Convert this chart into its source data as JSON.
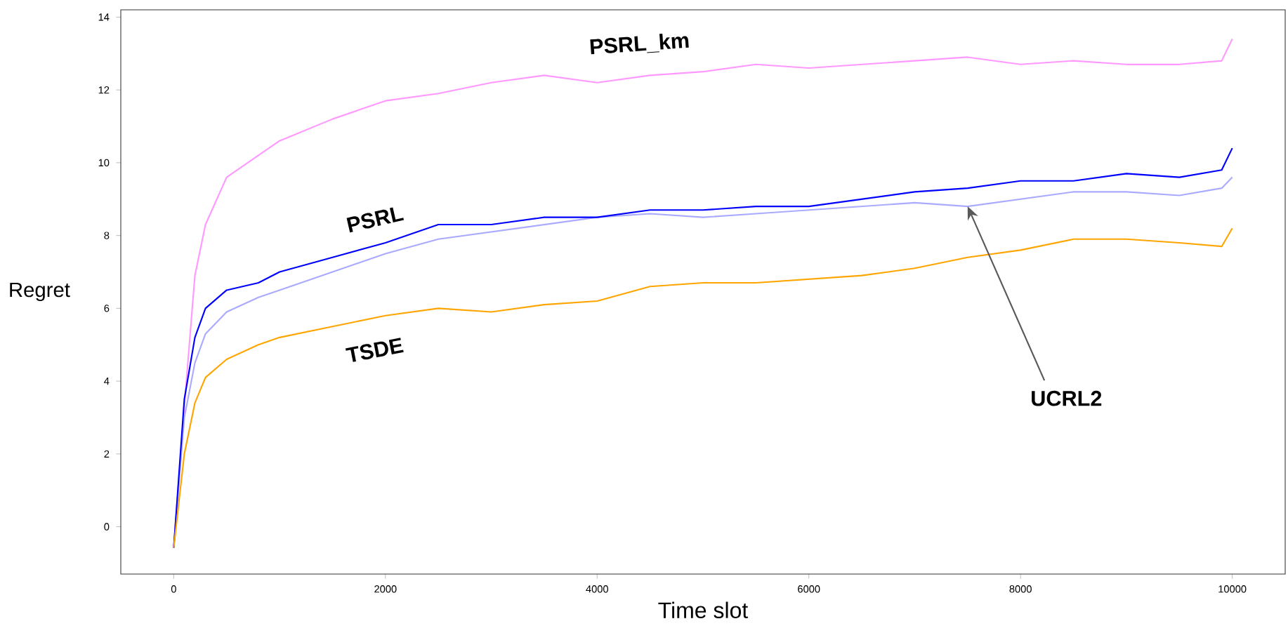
{
  "chart_data": {
    "type": "line",
    "xlabel": "Time slot",
    "ylabel": "Regret",
    "x": [
      0,
      100,
      200,
      300,
      500,
      800,
      1000,
      1500,
      2000,
      2500,
      3000,
      3500,
      4000,
      4500,
      5000,
      5500,
      6000,
      6500,
      7000,
      7500,
      8000,
      8500,
      9000,
      9500,
      9900,
      10000
    ],
    "series": [
      {
        "name": "PSRL_km",
        "color": "#ff99ff",
        "values": [
          -0.58,
          3.3,
          6.9,
          8.3,
          9.6,
          10.2,
          10.6,
          11.2,
          11.7,
          11.9,
          12.2,
          12.4,
          12.2,
          12.4,
          12.5,
          12.7,
          12.6,
          12.7,
          12.8,
          12.9,
          12.7,
          12.8,
          12.7,
          12.7,
          12.8,
          13.4
        ]
      },
      {
        "color": "#aaaaff",
        "values": [
          -0.58,
          3.0,
          4.5,
          5.3,
          5.9,
          6.3,
          6.5,
          7.0,
          7.5,
          7.9,
          8.1,
          8.3,
          8.5,
          8.6,
          8.5,
          8.6,
          8.7,
          8.8,
          8.9,
          8.8,
          9.0,
          9.2,
          9.2,
          9.1,
          9.3,
          9.6
        ]
      },
      {
        "name": "PSRL",
        "color": "#0000ff",
        "values": [
          -0.58,
          3.5,
          5.2,
          6.0,
          6.5,
          6.7,
          7.0,
          7.4,
          7.8,
          8.3,
          8.3,
          8.5,
          8.5,
          8.7,
          8.7,
          8.8,
          8.8,
          9.0,
          9.2,
          9.3,
          9.5,
          9.5,
          9.7,
          9.6,
          9.8,
          10.4
        ]
      },
      {
        "name": "TSDE",
        "color": "#ffa500",
        "values": [
          -0.58,
          2.0,
          3.4,
          4.1,
          4.6,
          5.0,
          5.2,
          5.5,
          5.8,
          6.0,
          5.9,
          6.1,
          6.2,
          6.6,
          6.7,
          6.7,
          6.8,
          6.9,
          7.1,
          7.4,
          7.6,
          7.9,
          7.9,
          7.8,
          7.7,
          8.2
        ]
      }
    ],
    "xlim": [
      -500,
      10500
    ],
    "ylim": [
      -1.3,
      14.2
    ],
    "xticks": [
      0,
      2000,
      4000,
      6000,
      8000,
      10000
    ],
    "yticks": [
      0,
      2,
      4,
      6,
      8,
      10,
      12,
      14
    ],
    "annotations": [
      {
        "text": "UCRL2",
        "x": 7500,
        "y": 8.8
      }
    ],
    "grid": false,
    "legend": false,
    "marker": "none",
    "line_style": "solid"
  }
}
